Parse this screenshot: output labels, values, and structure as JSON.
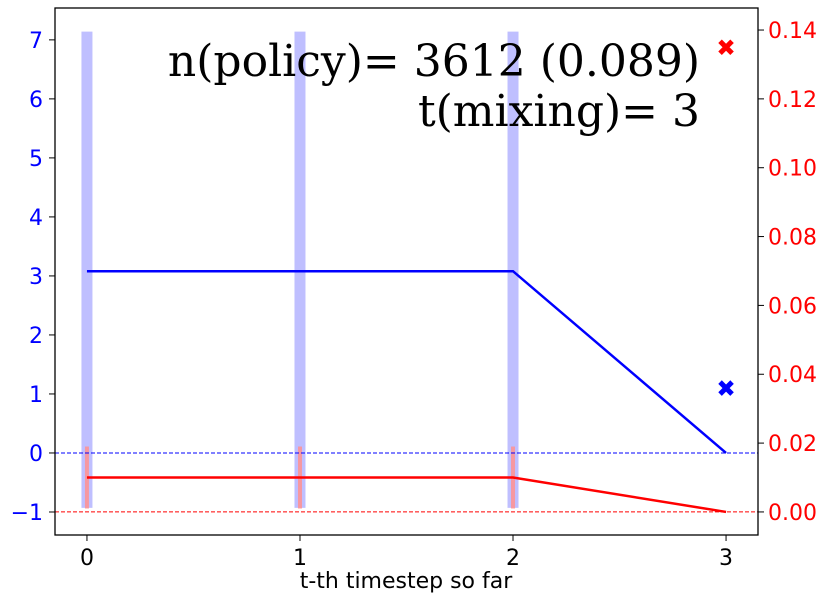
{
  "chart_data": {
    "type": "line",
    "x": [
      0,
      1,
      2,
      3
    ],
    "xlim": [
      -0.15,
      3.15
    ],
    "xticks": [
      0,
      1,
      2,
      3
    ],
    "xlabel": "t-th timestep so far",
    "ylim": [
      -1.39,
      7.54
    ],
    "yticks": [
      {
        "value": -1,
        "label": "−1"
      },
      0,
      1,
      2,
      3,
      4,
      5,
      6,
      7
    ],
    "y2lim": [
      -0.0067,
      0.1464
    ],
    "y2ticks": [
      {
        "value": 0,
        "label": "0.00"
      },
      0.02,
      0.04,
      0.06,
      0.08,
      {
        "value": 0.1,
        "label": "0.10"
      },
      0.12,
      0.14
    ],
    "ycolor": "#0000ff",
    "y2color": "#ff0000",
    "series": [
      {
        "color": "#0000ff",
        "values": [
          3.08,
          3.08,
          3.08,
          0
        ]
      },
      {
        "color": "#ff0000",
        "axis": "y2",
        "values": [
          0.01,
          0.01,
          0.01,
          0
        ]
      }
    ],
    "bands": [
      {
        "color": "#b4b4ff",
        "x": [
          0,
          1,
          2
        ],
        "low": -0.93,
        "high": 7.14
      },
      {
        "color": "#ff9090",
        "axis": "y2",
        "x": [
          0,
          1,
          2
        ],
        "low": 0.001,
        "high": 0.019
      }
    ],
    "markers": [
      {
        "color": "#0000ff",
        "x": 3,
        "y": 1.1
      },
      {
        "color": "#ff0000",
        "axis": "y2",
        "x": 3,
        "y": 0.135
      }
    ],
    "hlines": [
      {
        "color": "#0000ff",
        "value": 0
      },
      {
        "color": "#ff0000",
        "axis": "y2",
        "value": 0
      }
    ],
    "annotations": [
      "n(policy)= 3612 (0.089)",
      "t(mixing)= 3"
    ]
  }
}
